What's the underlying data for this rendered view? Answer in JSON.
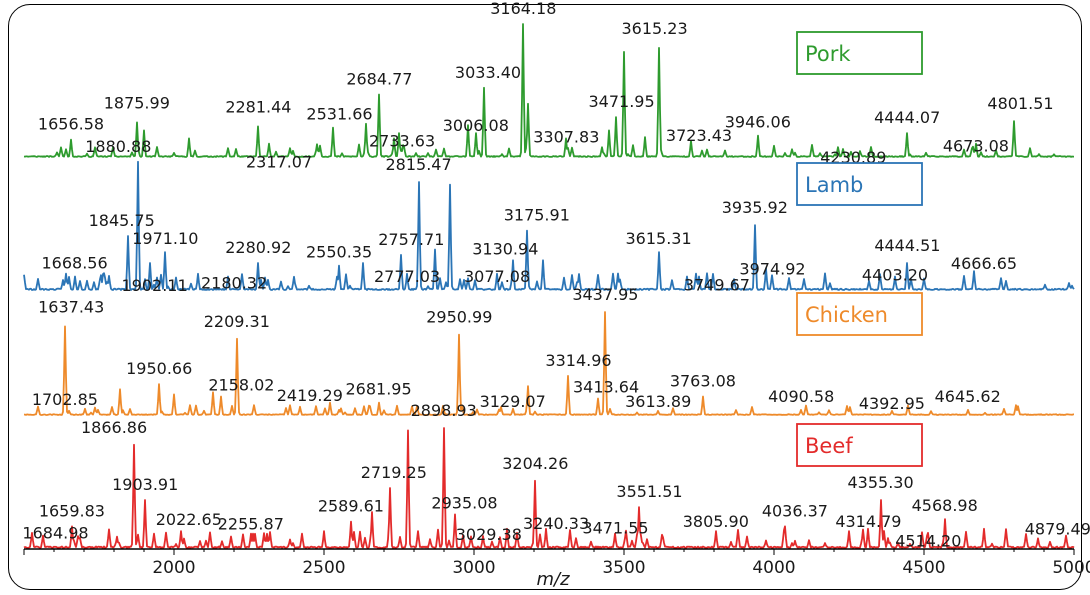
{
  "chart_data": {
    "type": "line",
    "xlabel": "m/z",
    "ylabel": "",
    "xlim": [
      1500,
      5000
    ],
    "x_ticks": [
      2000,
      2500,
      3000,
      3500,
      4000,
      4500,
      5000
    ],
    "grid": false,
    "series": [
      {
        "name": "Pork",
        "color": "#2e9b2e",
        "base_intensity": 0.03,
        "noise_seed": 11,
        "noise_density": 70,
        "peaks": [
          {
            "mz": 1656.58,
            "i": 0.13,
            "label": "1656.58"
          },
          {
            "mz": 1875.99,
            "i": 0.26,
            "label": "1875.99"
          },
          {
            "mz": 2281.44,
            "i": 0.23,
            "label": "2281.44"
          },
          {
            "mz": 2317.07,
            "i": 0.1,
            "label": "2317.07"
          },
          {
            "mz": 2531.66,
            "i": 0.22,
            "label": "2531.66"
          },
          {
            "mz": 2684.77,
            "i": 0.47,
            "label": "2684.77"
          },
          {
            "mz": 2733.63,
            "i": 0.14,
            "label": "2733.63"
          },
          {
            "mz": 3006.08,
            "i": 0.18,
            "label": "3006.08"
          },
          {
            "mz": 3033.4,
            "i": 0.52,
            "label": "3033.40"
          },
          {
            "mz": 3164.18,
            "i": 1.0,
            "label": "3164.18"
          },
          {
            "mz": 3307.83,
            "i": 0.14,
            "label": "3307.83"
          },
          {
            "mz": 3471.95,
            "i": 0.3,
            "label": "3471.95"
          },
          {
            "mz": 3615.23,
            "i": 0.82,
            "label": "3615.23"
          },
          {
            "mz": 3723.43,
            "i": 0.12,
            "label": "3723.43"
          },
          {
            "mz": 3946.06,
            "i": 0.16,
            "label": "3946.06"
          },
          {
            "mz": 4230.89,
            "i": 0.06,
            "label": "4230.89"
          },
          {
            "mz": 4444.07,
            "i": 0.18,
            "label": "4444.07"
          },
          {
            "mz": 4673.08,
            "i": 0.1,
            "label": "4673.08"
          },
          {
            "mz": 4801.51,
            "i": 0.27,
            "label": "4801.51"
          },
          {
            "mz": 3500,
            "i": 0.79,
            "label": ""
          },
          {
            "mz": 2640,
            "i": 0.25,
            "label": ""
          },
          {
            "mz": 3180,
            "i": 0.4,
            "label": ""
          },
          {
            "mz": 3450,
            "i": 0.2,
            "label": ""
          },
          {
            "mz": 2980,
            "i": 0.24,
            "label": ""
          },
          {
            "mz": 1900,
            "i": 0.2,
            "label": ""
          },
          {
            "mz": 2050,
            "i": 0.14,
            "label": ""
          },
          {
            "mz": 2750,
            "i": 0.18,
            "label": ""
          },
          {
            "mz": 3570,
            "i": 0.15,
            "label": ""
          }
        ]
      },
      {
        "name": "Lamb",
        "color": "#2b75b6",
        "base_intensity": 0.04,
        "noise_seed": 23,
        "noise_density": 75,
        "peaks": [
          {
            "mz": 1668.56,
            "i": 0.1,
            "label": "1668.56"
          },
          {
            "mz": 1845.75,
            "i": 0.4,
            "label": "1845.75"
          },
          {
            "mz": 1880.88,
            "i": 0.95,
            "label": "1880.88"
          },
          {
            "mz": 1902.11,
            "i": 0.08,
            "label": "1902.11"
          },
          {
            "mz": 1971.1,
            "i": 0.28,
            "label": "1971.10"
          },
          {
            "mz": 2180.32,
            "i": 0.1,
            "label": "2180.32"
          },
          {
            "mz": 2280.92,
            "i": 0.2,
            "label": "2280.92"
          },
          {
            "mz": 2550.35,
            "i": 0.18,
            "label": "2550.35"
          },
          {
            "mz": 2757.71,
            "i": 0.26,
            "label": "2757.71"
          },
          {
            "mz": 2777.03,
            "i": 0.12,
            "label": "2777.03"
          },
          {
            "mz": 2815.47,
            "i": 0.8,
            "label": "2815.47"
          },
          {
            "mz": 2920,
            "i": 0.78,
            "label": ""
          },
          {
            "mz": 3077.08,
            "i": 0.12,
            "label": "3077.08"
          },
          {
            "mz": 3130.94,
            "i": 0.22,
            "label": "3130.94"
          },
          {
            "mz": 3175.91,
            "i": 0.44,
            "label": "3175.91"
          },
          {
            "mz": 3615.31,
            "i": 0.28,
            "label": "3615.31"
          },
          {
            "mz": 3749.67,
            "i": 0.1,
            "label": "3749.67"
          },
          {
            "mz": 3935.92,
            "i": 0.48,
            "label": "3935.92"
          },
          {
            "mz": 3974.92,
            "i": 0.16,
            "label": "3974.92"
          },
          {
            "mz": 4403.2,
            "i": 0.1,
            "label": "4403.20"
          },
          {
            "mz": 4444.51,
            "i": 0.2,
            "label": "4444.51"
          },
          {
            "mz": 4666.65,
            "i": 0.14,
            "label": "4666.65"
          },
          {
            "mz": 2630,
            "i": 0.2,
            "label": ""
          },
          {
            "mz": 3230,
            "i": 0.22,
            "label": ""
          },
          {
            "mz": 2870,
            "i": 0.3,
            "label": ""
          },
          {
            "mz": 2080,
            "i": 0.12,
            "label": ""
          },
          {
            "mz": 1920,
            "i": 0.2,
            "label": ""
          }
        ]
      },
      {
        "name": "Chicken",
        "color": "#ee8a2a",
        "base_intensity": 0.03,
        "noise_seed": 37,
        "noise_density": 60,
        "peaks": [
          {
            "mz": 1637.43,
            "i": 0.86,
            "label": "1637.43"
          },
          {
            "mz": 1702.85,
            "i": 0.06,
            "label": "1702.85"
          },
          {
            "mz": 1820,
            "i": 0.25,
            "label": ""
          },
          {
            "mz": 1950.66,
            "i": 0.3,
            "label": "1950.66"
          },
          {
            "mz": 2000,
            "i": 0.2,
            "label": ""
          },
          {
            "mz": 2158.02,
            "i": 0.18,
            "label": "2158.02"
          },
          {
            "mz": 2209.31,
            "i": 0.74,
            "label": "2209.31"
          },
          {
            "mz": 2130,
            "i": 0.22,
            "label": ""
          },
          {
            "mz": 2419.29,
            "i": 0.08,
            "label": "2419.29"
          },
          {
            "mz": 2681.95,
            "i": 0.12,
            "label": "2681.95"
          },
          {
            "mz": 2520,
            "i": 0.12,
            "label": ""
          },
          {
            "mz": 2950.99,
            "i": 0.78,
            "label": "2950.99"
          },
          {
            "mz": 3129.07,
            "i": 0.06,
            "label": "3129.07"
          },
          {
            "mz": 3180,
            "i": 0.28,
            "label": ""
          },
          {
            "mz": 3314.96,
            "i": 0.38,
            "label": "3314.96"
          },
          {
            "mz": 3413.64,
            "i": 0.16,
            "label": "3413.64"
          },
          {
            "mz": 3437.95,
            "i": 1.0,
            "label": "3437.95"
          },
          {
            "mz": 3613.89,
            "i": 0.04,
            "label": "3613.89"
          },
          {
            "mz": 3763.08,
            "i": 0.18,
            "label": "3763.08"
          },
          {
            "mz": 4090.58,
            "i": 0.05,
            "label": "4090.58"
          },
          {
            "mz": 4392.95,
            "i": 0.04,
            "label": "4392.95"
          },
          {
            "mz": 4645.62,
            "i": 0.05,
            "label": "4645.62"
          }
        ]
      },
      {
        "name": "Beef",
        "color": "#e32b2b",
        "base_intensity": 0.05,
        "noise_seed": 53,
        "noise_density": 90,
        "peaks": [
          {
            "mz": 1659.83,
            "i": 0.18,
            "label": "1659.83"
          },
          {
            "mz": 1684.98,
            "i": 0.08,
            "label": "1684.98"
          },
          {
            "mz": 1866.86,
            "i": 0.86,
            "label": "1866.86"
          },
          {
            "mz": 1903.91,
            "i": 0.4,
            "label": "1903.91"
          },
          {
            "mz": 2022.65,
            "i": 0.14,
            "label": "2022.65"
          },
          {
            "mz": 2255.87,
            "i": 0.12,
            "label": "2255.87"
          },
          {
            "mz": 2589.61,
            "i": 0.22,
            "label": "2589.61"
          },
          {
            "mz": 2719.25,
            "i": 0.5,
            "label": "2719.25"
          },
          {
            "mz": 2780,
            "i": 0.98,
            "label": ""
          },
          {
            "mz": 2898.93,
            "i": 1.0,
            "label": "2898.93"
          },
          {
            "mz": 2935.08,
            "i": 0.28,
            "label": "2935.08"
          },
          {
            "mz": 3029.38,
            "i": 0.1,
            "label": "3029.38"
          },
          {
            "mz": 3204.26,
            "i": 0.56,
            "label": "3204.26"
          },
          {
            "mz": 3240.33,
            "i": 0.16,
            "label": "3240.33"
          },
          {
            "mz": 3471.55,
            "i": 0.12,
            "label": "3471.55"
          },
          {
            "mz": 3551.51,
            "i": 0.34,
            "label": "3551.51"
          },
          {
            "mz": 3805.9,
            "i": 0.14,
            "label": "3805.90"
          },
          {
            "mz": 4036.37,
            "i": 0.18,
            "label": "4036.37"
          },
          {
            "mz": 4314.79,
            "i": 0.16,
            "label": "4314.79"
          },
          {
            "mz": 4355.3,
            "i": 0.4,
            "label": "4355.30"
          },
          {
            "mz": 4514.2,
            "i": 0.08,
            "label": "4514.20"
          },
          {
            "mz": 4568.98,
            "i": 0.24,
            "label": "4568.98"
          },
          {
            "mz": 4879.49,
            "i": 0.08,
            "label": "4879.49"
          },
          {
            "mz": 2500,
            "i": 0.14,
            "label": ""
          },
          {
            "mz": 2660,
            "i": 0.3,
            "label": ""
          },
          {
            "mz": 3110,
            "i": 0.16,
            "label": ""
          },
          {
            "mz": 4700,
            "i": 0.16,
            "label": ""
          },
          {
            "mz": 4250,
            "i": 0.14,
            "label": ""
          }
        ]
      }
    ]
  }
}
